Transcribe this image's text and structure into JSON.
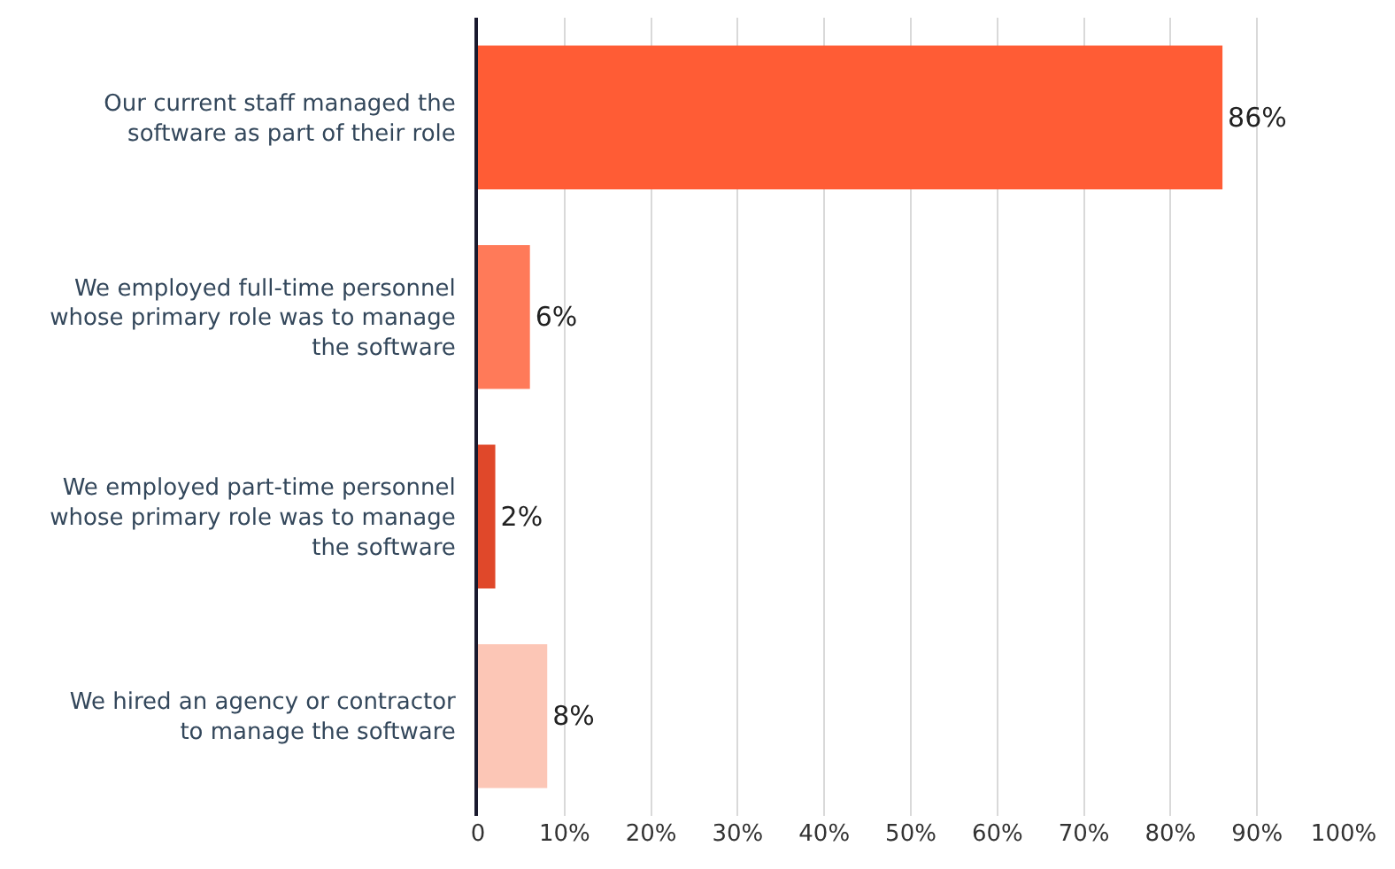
{
  "chart_data": {
    "type": "bar",
    "orientation": "horizontal",
    "categories": [
      "Our current staff managed the software as part of their role",
      "We employed full-time personnel whose primary role was to manage the software",
      "We employed part-time personnel whose primary role was to manage the software",
      "We hired an agency or contractor to manage the software"
    ],
    "values": [
      86,
      6,
      2,
      8
    ],
    "colors": [
      "#ff5c35",
      "#ff7a59",
      "#e0482a",
      "#fcc6b6"
    ],
    "value_labels": [
      "86%",
      "6%",
      "2%",
      "8%"
    ],
    "xlim": [
      0,
      100
    ],
    "xticks": [
      0,
      {
        "value": 10,
        "label": "10%"
      },
      {
        "value": 20,
        "label": "20%"
      },
      {
        "value": 30,
        "label": "30%"
      },
      {
        "value": 40,
        "label": "40%"
      },
      {
        "value": 50,
        "label": "50%"
      },
      {
        "value": 60,
        "label": "60%"
      },
      {
        "value": 70,
        "label": "70%"
      },
      {
        "value": 80,
        "label": "80%"
      },
      {
        "value": 90,
        "label": "90%"
      },
      {
        "value": 100,
        "label": "100%"
      }
    ],
    "grid": "x"
  }
}
